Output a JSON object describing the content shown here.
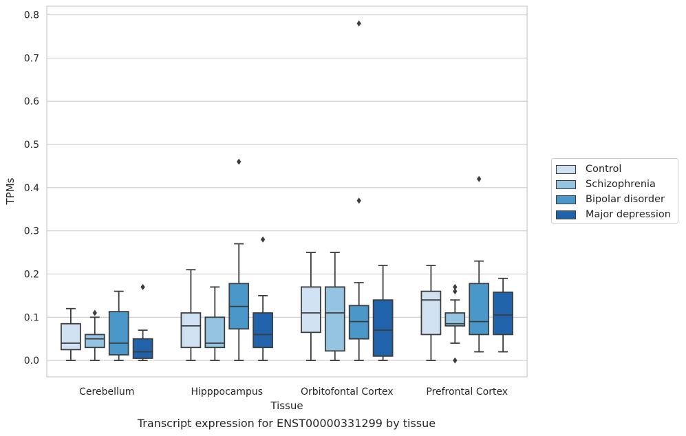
{
  "chart_data": {
    "type": "box",
    "caption": "Transcript expression for ENST00000331299 by tissue",
    "xlabel": "Tissue",
    "ylabel": "TPMs",
    "ylim": [
      -0.038,
      0.82
    ],
    "yticks": [
      "0.0",
      "0.1",
      "0.2",
      "0.3",
      "0.4",
      "0.5",
      "0.6",
      "0.7",
      "0.8"
    ],
    "ytick_values": [
      0.0,
      0.1,
      0.2,
      0.3,
      0.4,
      0.5,
      0.6,
      0.7,
      0.8
    ],
    "grid": true,
    "legend_position": "right",
    "categories": [
      "Cerebellum",
      "Hipppocampus",
      "Orbitofontal Cortex",
      "Prefrontal Cortex"
    ],
    "series": [
      {
        "name": "Control",
        "color": "#d0e1f2",
        "boxes": [
          {
            "whisker_low": 0.0,
            "q1": 0.025,
            "median": 0.04,
            "q3": 0.085,
            "whisker_high": 0.12,
            "outliers": []
          },
          {
            "whisker_low": 0.0,
            "q1": 0.03,
            "median": 0.08,
            "q3": 0.11,
            "whisker_high": 0.21,
            "outliers": []
          },
          {
            "whisker_low": 0.0,
            "q1": 0.065,
            "median": 0.11,
            "q3": 0.17,
            "whisker_high": 0.25,
            "outliers": []
          },
          {
            "whisker_low": 0.0,
            "q1": 0.06,
            "median": 0.14,
            "q3": 0.16,
            "whisker_high": 0.22,
            "outliers": []
          }
        ]
      },
      {
        "name": "Schizophrenia",
        "color": "#94c4df",
        "boxes": [
          {
            "whisker_low": 0.0,
            "q1": 0.03,
            "median": 0.05,
            "q3": 0.06,
            "whisker_high": 0.1,
            "outliers": [
              0.11
            ]
          },
          {
            "whisker_low": 0.0,
            "q1": 0.03,
            "median": 0.04,
            "q3": 0.1,
            "whisker_high": 0.17,
            "outliers": []
          },
          {
            "whisker_low": 0.0,
            "q1": 0.022,
            "median": 0.11,
            "q3": 0.17,
            "whisker_high": 0.25,
            "outliers": []
          },
          {
            "whisker_low": 0.04,
            "q1": 0.08,
            "median": 0.085,
            "q3": 0.11,
            "whisker_high": 0.14,
            "outliers": [
              0.0,
              0.16,
              0.17
            ]
          }
        ]
      },
      {
        "name": "Bipolar disorder",
        "color": "#4a98c9",
        "boxes": [
          {
            "whisker_low": 0.0,
            "q1": 0.013,
            "median": 0.04,
            "q3": 0.113,
            "whisker_high": 0.16,
            "outliers": []
          },
          {
            "whisker_low": 0.0,
            "q1": 0.073,
            "median": 0.125,
            "q3": 0.178,
            "whisker_high": 0.27,
            "outliers": [
              0.46
            ]
          },
          {
            "whisker_low": 0.0,
            "q1": 0.05,
            "median": 0.09,
            "q3": 0.127,
            "whisker_high": 0.18,
            "outliers": [
              0.37,
              0.78
            ]
          },
          {
            "whisker_low": 0.02,
            "q1": 0.06,
            "median": 0.09,
            "q3": 0.178,
            "whisker_high": 0.23,
            "outliers": [
              0.42
            ]
          }
        ]
      },
      {
        "name": "Major depression",
        "color": "#2163aa",
        "boxes": [
          {
            "whisker_low": 0.0,
            "q1": 0.005,
            "median": 0.02,
            "q3": 0.05,
            "whisker_high": 0.07,
            "outliers": [
              0.17
            ]
          },
          {
            "whisker_low": 0.0,
            "q1": 0.03,
            "median": 0.06,
            "q3": 0.11,
            "whisker_high": 0.15,
            "outliers": [
              0.28
            ]
          },
          {
            "whisker_low": 0.0,
            "q1": 0.01,
            "median": 0.07,
            "q3": 0.14,
            "whisker_high": 0.22,
            "outliers": []
          },
          {
            "whisker_low": 0.02,
            "q1": 0.06,
            "median": 0.105,
            "q3": 0.158,
            "whisker_high": 0.19,
            "outliers": []
          }
        ]
      }
    ]
  }
}
